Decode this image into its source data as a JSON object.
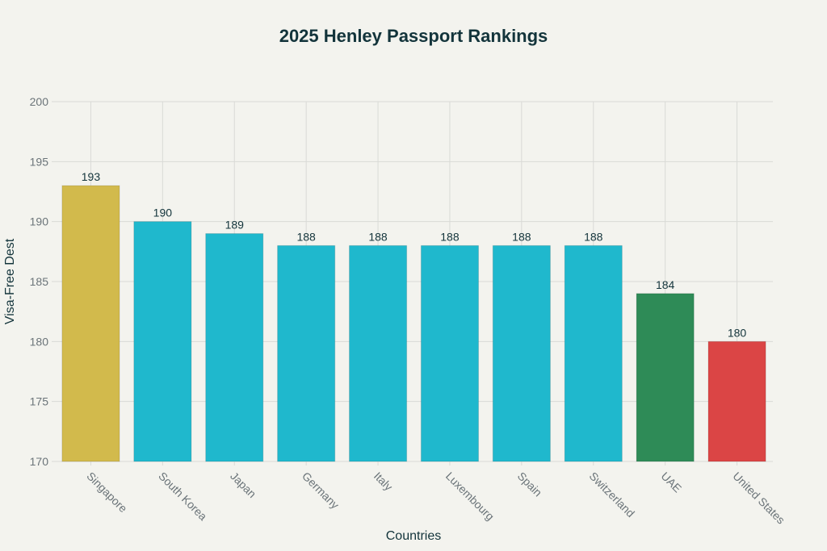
{
  "chart_data": {
    "type": "bar",
    "title": "2025 Henley Passport Rankings",
    "xlabel": "Countries",
    "ylabel": "Visa-Free Dest",
    "categories": [
      "Singapore",
      "South Korea",
      "Japan",
      "Germany",
      "Italy",
      "Luxembourg",
      "Spain",
      "Switzerland",
      "UAE",
      "United States"
    ],
    "values": [
      193,
      190,
      189,
      188,
      188,
      188,
      188,
      188,
      184,
      180
    ],
    "colors": [
      "#D2BA4C",
      "#1FB8CD",
      "#1FB8CD",
      "#1FB8CD",
      "#1FB8CD",
      "#1FB8CD",
      "#1FB8CD",
      "#1FB8CD",
      "#2E8B57",
      "#DB4545"
    ],
    "ylim": [
      170,
      200
    ],
    "yticks": [
      170,
      175,
      180,
      185,
      190,
      195,
      200
    ],
    "grid": true,
    "data_labels": true,
    "legend": "none"
  }
}
